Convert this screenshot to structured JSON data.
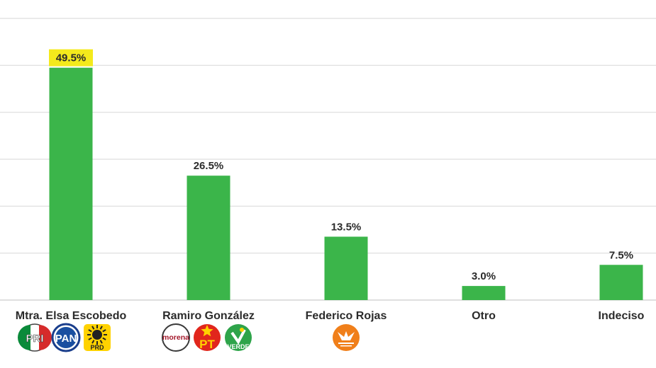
{
  "chart_data": {
    "type": "bar",
    "categories": [
      "Mtra. Elsa Escobedo",
      "Ramiro González",
      "Federico Rojas",
      "Otro",
      "Indeciso"
    ],
    "values": [
      49.5,
      26.5,
      13.5,
      3.0,
      7.5
    ],
    "value_labels": [
      "49.5%",
      "26.5%",
      "13.5%",
      "3.0%",
      "7.5%"
    ],
    "ylim": [
      0,
      60
    ],
    "grid": true,
    "highlight_index": 0,
    "colors": {
      "bar": "#3bb54a",
      "grid": "#dddddd",
      "highlight": "#f4ea1c",
      "text": "#2b2b2b"
    }
  },
  "party_logos": [
    [
      {
        "name": "pri-logo",
        "text": "PRI"
      },
      {
        "name": "pan-logo",
        "text": "PAN"
      },
      {
        "name": "prd-logo",
        "text": "PRD"
      }
    ],
    [
      {
        "name": "morena-logo",
        "text": "morena"
      },
      {
        "name": "pt-logo",
        "text": "PT"
      },
      {
        "name": "verde-logo",
        "text": "VERDE"
      }
    ],
    [
      {
        "name": "movimiento-ciudadano-logo",
        "text": ""
      }
    ],
    [],
    []
  ]
}
